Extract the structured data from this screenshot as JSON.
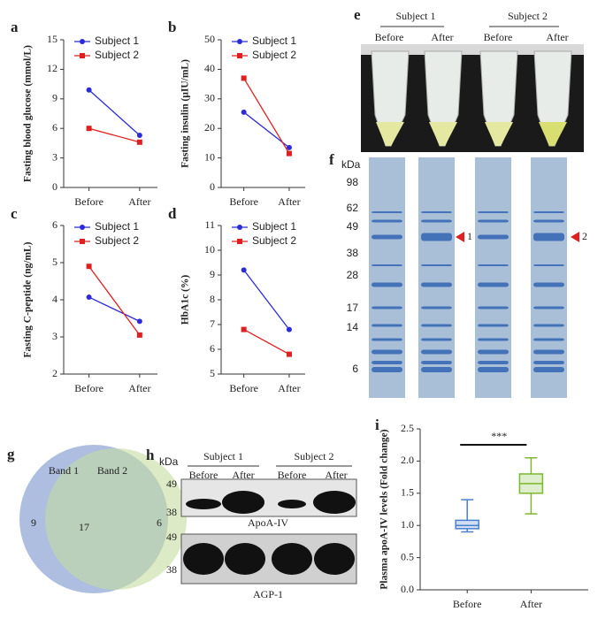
{
  "chart_data": [
    {
      "type": "line",
      "panel": "a",
      "ylabel": "Fasting blood glucose (mmol/L)",
      "categories": [
        "Before",
        "After"
      ],
      "series": [
        {
          "name": "Subject 1",
          "color": "#2b2bd8",
          "marker": "circle",
          "values": [
            9.9,
            5.3
          ]
        },
        {
          "name": "Subject 2",
          "color": "#e02020",
          "marker": "square",
          "values": [
            6.0,
            4.6
          ]
        }
      ],
      "ylim": [
        0,
        15
      ],
      "yticks": [
        0,
        3,
        6,
        9,
        12,
        15
      ]
    },
    {
      "type": "line",
      "panel": "b",
      "ylabel": "Fasting insulin (μIU/mL)",
      "categories": [
        "Before",
        "After"
      ],
      "series": [
        {
          "name": "Subject 1",
          "color": "#2b2bd8",
          "marker": "circle",
          "values": [
            25.5,
            13.5
          ]
        },
        {
          "name": "Subject 2",
          "color": "#e02020",
          "marker": "square",
          "values": [
            37,
            11.5
          ]
        }
      ],
      "ylim": [
        0,
        50
      ],
      "yticks": [
        0,
        10,
        20,
        30,
        40,
        50
      ]
    },
    {
      "type": "line",
      "panel": "c",
      "ylabel": "Fasting C-peptide (ng/mL)",
      "categories": [
        "Before",
        "After"
      ],
      "series": [
        {
          "name": "Subject 1",
          "color": "#2b2bd8",
          "marker": "circle",
          "values": [
            4.07,
            3.42
          ]
        },
        {
          "name": "Subject 2",
          "color": "#e02020",
          "marker": "square",
          "values": [
            4.9,
            3.05
          ]
        }
      ],
      "ylim": [
        2,
        6
      ],
      "yticks": [
        2,
        3,
        4,
        5,
        6
      ]
    },
    {
      "type": "line",
      "panel": "d",
      "ylabel": "HbA1c (%)",
      "categories": [
        "Before",
        "After"
      ],
      "series": [
        {
          "name": "Subject 1",
          "color": "#2b2bd8",
          "marker": "circle",
          "values": [
            9.2,
            6.8
          ]
        },
        {
          "name": "Subject 2",
          "color": "#e02020",
          "marker": "square",
          "values": [
            6.8,
            5.8
          ]
        }
      ],
      "ylim": [
        5,
        11
      ],
      "yticks": [
        5,
        6,
        7,
        8,
        9,
        10,
        11
      ]
    },
    {
      "type": "box",
      "panel": "i",
      "ylabel": "Plasma apoA-IV levels (Fold change)",
      "categories": [
        "Before",
        "After"
      ],
      "boxes": [
        {
          "color": "#4a7fd0",
          "min": 0.9,
          "q1": 0.95,
          "median": 1.0,
          "q3": 1.08,
          "max": 1.4
        },
        {
          "color": "#7cb82f",
          "min": 1.18,
          "q1": 1.5,
          "median": 1.65,
          "q3": 1.8,
          "max": 2.05
        }
      ],
      "annotation": "***",
      "ylim": [
        0,
        2.5
      ],
      "yticks": [
        {
          "value": 0,
          "label": "0.0"
        },
        {
          "value": 0.5,
          "label": "0.5"
        },
        {
          "value": 1,
          "label": "1.0"
        },
        {
          "value": 1.5,
          "label": "1.5"
        },
        {
          "value": 2,
          "label": "2.0"
        },
        {
          "value": 2.5,
          "label": "2.5"
        }
      ]
    }
  ],
  "photo": {
    "panel": "e",
    "groups": [
      "Subject 1",
      "Subject 2"
    ],
    "lanes": [
      "Before",
      "After",
      "Before",
      "After"
    ]
  },
  "gel": {
    "panel": "f",
    "unit": "kDa",
    "markers": [
      98,
      62,
      49,
      38,
      28,
      17,
      14,
      6
    ],
    "bands": [
      "1",
      "2"
    ]
  },
  "venn": {
    "panel": "g",
    "sets": [
      "Band 1",
      "Band 2"
    ],
    "only_1": 9,
    "overlap": 17,
    "only_2": 6
  },
  "blot": {
    "panel": "h",
    "unit": "kDa",
    "groups": [
      "Subject 1",
      "Subject 2"
    ],
    "lanes": [
      "Before",
      "After",
      "Before",
      "After"
    ],
    "rows": [
      {
        "name": "ApoA-IV",
        "markers": [
          49,
          38
        ]
      },
      {
        "name": "AGP-1",
        "markers": [
          49,
          38
        ]
      }
    ]
  }
}
